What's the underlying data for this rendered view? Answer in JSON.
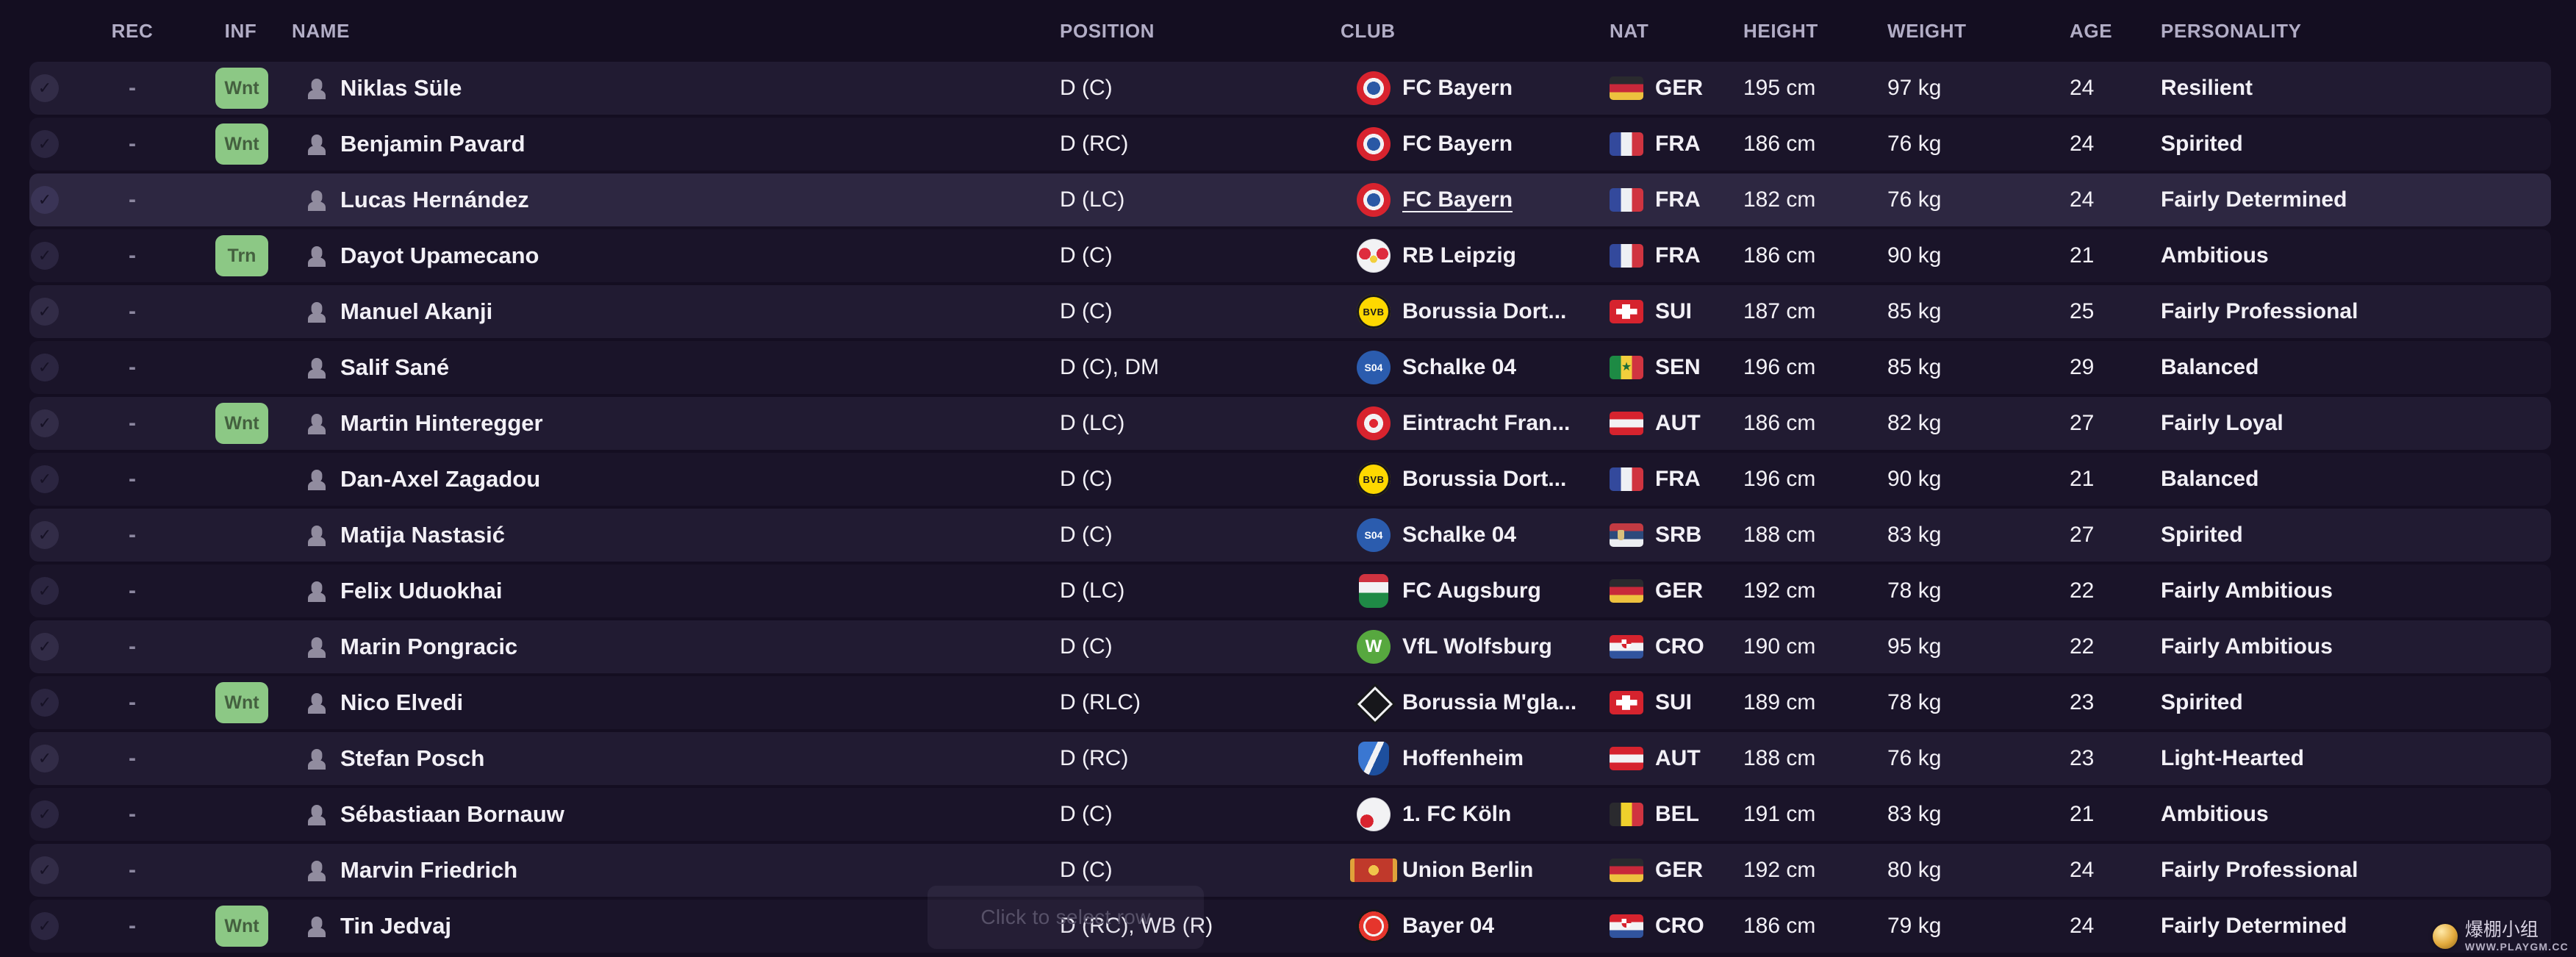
{
  "table": {
    "columns": [
      {
        "key": "rec",
        "label": "REC"
      },
      {
        "key": "inf",
        "label": "INF"
      },
      {
        "key": "name",
        "label": "NAME"
      },
      {
        "key": "position",
        "label": "POSITION"
      },
      {
        "key": "club",
        "label": "CLUB"
      },
      {
        "key": "nat",
        "label": "NAT"
      },
      {
        "key": "height",
        "label": "HEIGHT"
      },
      {
        "key": "weight",
        "label": "WEIGHT"
      },
      {
        "key": "age",
        "label": "AGE"
      },
      {
        "key": "personality",
        "label": "PERSONALITY"
      }
    ],
    "rows": [
      {
        "rec": "-",
        "inf": "Wnt",
        "name": "Niklas Süle",
        "position": "D (C)",
        "club": "FC Bayern",
        "club_badge": "bayern",
        "badge_label": "",
        "nat": "GER",
        "height": "195 cm",
        "weight": "97 kg",
        "age": "24",
        "personality": "Resilient",
        "selected": false
      },
      {
        "rec": "-",
        "inf": "Wnt",
        "name": "Benjamin Pavard",
        "position": "D (RC)",
        "club": "FC Bayern",
        "club_badge": "bayern",
        "badge_label": "",
        "nat": "FRA",
        "height": "186 cm",
        "weight": "76 kg",
        "age": "24",
        "personality": "Spirited",
        "selected": false
      },
      {
        "rec": "-",
        "inf": "",
        "name": "Lucas Hernández",
        "position": "D (LC)",
        "club": "FC Bayern",
        "club_badge": "bayern",
        "badge_label": "",
        "nat": "FRA",
        "height": "182 cm",
        "weight": "76 kg",
        "age": "24",
        "personality": "Fairly Determined",
        "selected": true
      },
      {
        "rec": "-",
        "inf": "Trn",
        "name": "Dayot Upamecano",
        "position": "D (C)",
        "club": "RB Leipzig",
        "club_badge": "leipzig",
        "badge_label": "",
        "nat": "FRA",
        "height": "186 cm",
        "weight": "90 kg",
        "age": "21",
        "personality": "Ambitious",
        "selected": false
      },
      {
        "rec": "-",
        "inf": "",
        "name": "Manuel Akanji",
        "position": "D (C)",
        "club": "Borussia Dort...",
        "club_badge": "dortmund",
        "badge_label": "BVB",
        "nat": "SUI",
        "height": "187 cm",
        "weight": "85 kg",
        "age": "25",
        "personality": "Fairly Professional",
        "selected": false
      },
      {
        "rec": "-",
        "inf": "",
        "name": "Salif Sané",
        "position": "D (C), DM",
        "club": "Schalke 04",
        "club_badge": "schalke",
        "badge_label": "S04",
        "nat": "SEN",
        "height": "196 cm",
        "weight": "85 kg",
        "age": "29",
        "personality": "Balanced",
        "selected": false
      },
      {
        "rec": "-",
        "inf": "Wnt",
        "name": "Martin Hinteregger",
        "position": "D (LC)",
        "club": "Eintracht Fran...",
        "club_badge": "eintracht",
        "badge_label": "",
        "nat": "AUT",
        "height": "186 cm",
        "weight": "82 kg",
        "age": "27",
        "personality": "Fairly Loyal",
        "selected": false
      },
      {
        "rec": "-",
        "inf": "",
        "name": "Dan-Axel Zagadou",
        "position": "D (C)",
        "club": "Borussia Dort...",
        "club_badge": "dortmund",
        "badge_label": "BVB",
        "nat": "FRA",
        "height": "196 cm",
        "weight": "90 kg",
        "age": "21",
        "personality": "Balanced",
        "selected": false
      },
      {
        "rec": "-",
        "inf": "",
        "name": "Matija Nastasić",
        "position": "D (C)",
        "club": "Schalke 04",
        "club_badge": "schalke",
        "badge_label": "S04",
        "nat": "SRB",
        "height": "188 cm",
        "weight": "83 kg",
        "age": "27",
        "personality": "Spirited",
        "selected": false
      },
      {
        "rec": "-",
        "inf": "",
        "name": "Felix Uduokhai",
        "position": "D (LC)",
        "club": "FC Augsburg",
        "club_badge": "augsburg",
        "badge_label": "",
        "nat": "GER",
        "height": "192 cm",
        "weight": "78 kg",
        "age": "22",
        "personality": "Fairly Ambitious",
        "selected": false
      },
      {
        "rec": "-",
        "inf": "",
        "name": "Marin Pongracic",
        "position": "D (C)",
        "club": "VfL Wolfsburg",
        "club_badge": "wolfsburg",
        "badge_label": "W",
        "nat": "CRO",
        "height": "190 cm",
        "weight": "95 kg",
        "age": "22",
        "personality": "Fairly Ambitious",
        "selected": false
      },
      {
        "rec": "-",
        "inf": "Wnt",
        "name": "Nico Elvedi",
        "position": "D (RLC)",
        "club": "Borussia M'gla...",
        "club_badge": "gladbach",
        "badge_label": "",
        "nat": "SUI",
        "height": "189 cm",
        "weight": "78 kg",
        "age": "23",
        "personality": "Spirited",
        "selected": false
      },
      {
        "rec": "-",
        "inf": "",
        "name": "Stefan Posch",
        "position": "D (RC)",
        "club": "Hoffenheim",
        "club_badge": "hoffenheim",
        "badge_label": "",
        "nat": "AUT",
        "height": "188 cm",
        "weight": "76 kg",
        "age": "23",
        "personality": "Light-Hearted",
        "selected": false
      },
      {
        "rec": "-",
        "inf": "",
        "name": "Sébastiaan Bornauw",
        "position": "D (C)",
        "club": "1. FC Köln",
        "club_badge": "koln",
        "badge_label": "",
        "nat": "BEL",
        "height": "191 cm",
        "weight": "83 kg",
        "age": "21",
        "personality": "Ambitious",
        "selected": false
      },
      {
        "rec": "-",
        "inf": "",
        "name": "Marvin Friedrich",
        "position": "D (C)",
        "club": "Union Berlin",
        "club_badge": "union",
        "badge_label": "",
        "nat": "GER",
        "height": "192 cm",
        "weight": "80 kg",
        "age": "24",
        "personality": "Fairly Professional",
        "selected": false
      },
      {
        "rec": "-",
        "inf": "Wnt",
        "name": "Tin Jedvaj",
        "position": "D (RC), WB (R)",
        "club": "Bayer 04",
        "club_badge": "bayer",
        "badge_label": "",
        "nat": "CRO",
        "height": "186 cm",
        "weight": "79 kg",
        "age": "24",
        "personality": "Fairly Determined",
        "selected": false
      }
    ]
  },
  "icons": {
    "check": "✓"
  },
  "overlay": {
    "tooltip": "Click to select row"
  },
  "watermark": {
    "title": "爆棚小组",
    "url": "WWW.PLAYGM.CC"
  },
  "colors": {
    "background": "#140e21",
    "row_odd": "#211b32",
    "row_even": "#1a1429",
    "row_selected": "#2d2741",
    "info_badge_green": "#8cc885",
    "text": "#f2f0f6",
    "header_text": "#b2adc6"
  }
}
